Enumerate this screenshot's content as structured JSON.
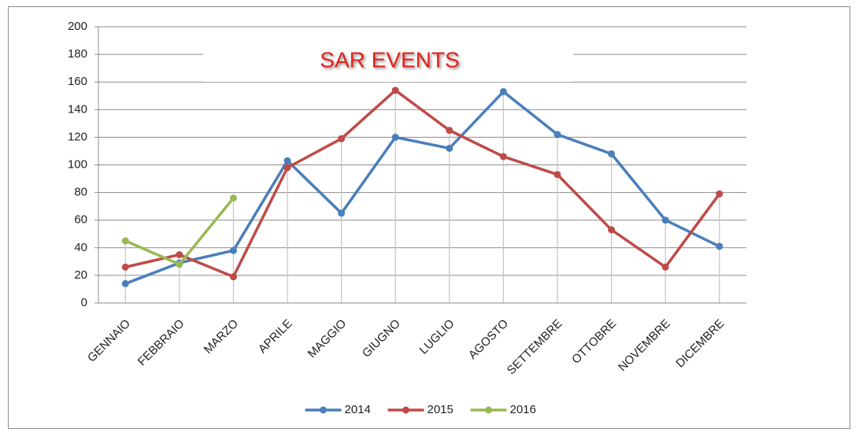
{
  "chart_data": {
    "type": "line",
    "title": "SAR EVENTS",
    "categories": [
      "GENNAIO",
      "FEBBRAIO",
      "MARZO",
      "APRILE",
      "MAGGIO",
      "GIUGNO",
      "LUGLIO",
      "AGOSTO",
      "SETTEMBRE",
      "OTTOBRE",
      "NOVEMBRE",
      "DICEMBRE"
    ],
    "series": [
      {
        "name": "2014",
        "color": "#4a7ebb",
        "values": [
          14,
          29,
          38,
          103,
          65,
          120,
          112,
          153,
          122,
          108,
          60,
          41
        ]
      },
      {
        "name": "2015",
        "color": "#be4b48",
        "values": [
          26,
          35,
          19,
          98,
          119,
          154,
          125,
          106,
          93,
          53,
          26,
          79
        ]
      },
      {
        "name": "2016",
        "color": "#98b954",
        "values": [
          45,
          28,
          76,
          null,
          null,
          null,
          null,
          null,
          null,
          null,
          null,
          null
        ]
      }
    ],
    "ylim": [
      0,
      200
    ],
    "yticks": [
      0,
      20,
      40,
      60,
      80,
      100,
      120,
      140,
      160,
      180,
      200
    ],
    "grid": true,
    "drop_lines": true,
    "legend": "bottom"
  }
}
